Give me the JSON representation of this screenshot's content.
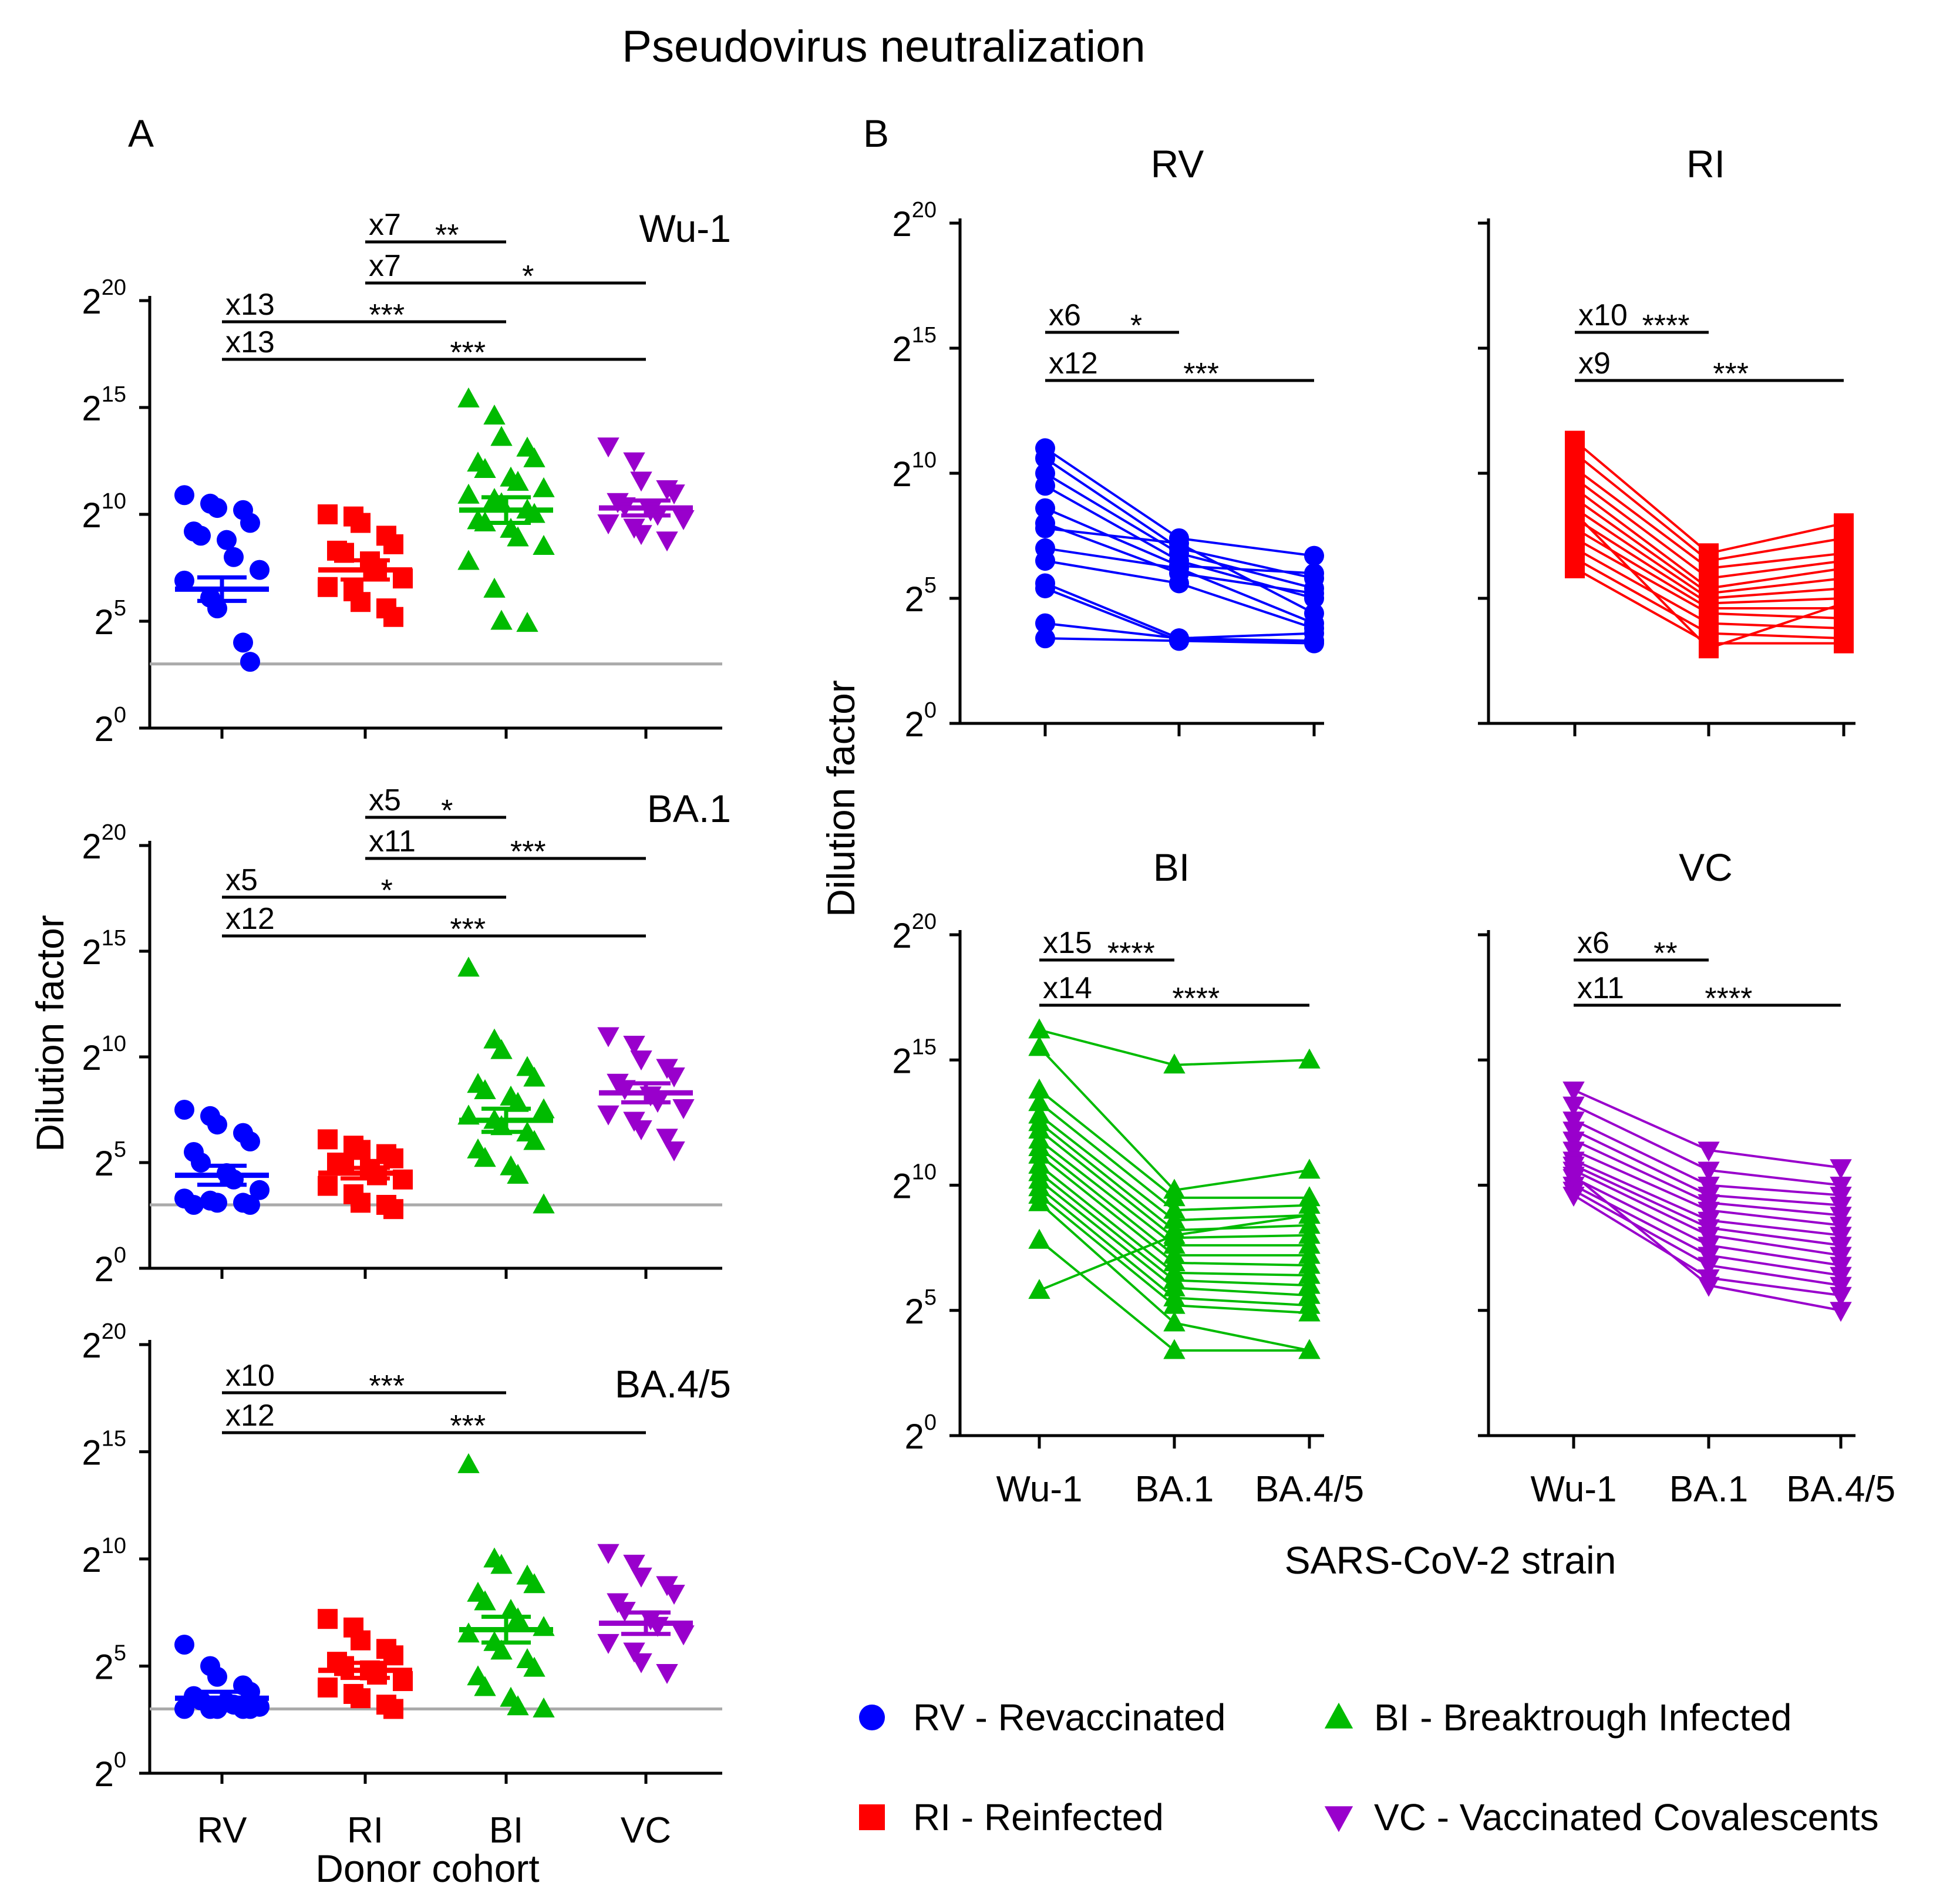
{
  "title": "Pseudovirus neutralization",
  "colors": {
    "RV": "#0000ff",
    "RI": "#ff0000",
    "BI": "#00bb00",
    "VC": "#9900cc",
    "threshold": "#aaaaaa",
    "axis": "#000000"
  },
  "panel_labels": {
    "A": "A",
    "B": "B"
  },
  "axis_labels": {
    "y": "Dilution factor",
    "x_a": "Donor cohort",
    "x_b": "SARS-CoV-2 strain"
  },
  "legend": [
    {
      "key": "RV",
      "label": "RV - Revaccinated",
      "marker": "circle"
    },
    {
      "key": "BI",
      "label": "BI - Breaktrough Infected",
      "marker": "triangle-up"
    },
    {
      "key": "RI",
      "label": "RI - Reinfected",
      "marker": "square"
    },
    {
      "key": "VC",
      "label": "VC - Vaccinated Covalescents",
      "marker": "triangle-down"
    }
  ],
  "chart_data": [
    {
      "id": "A-Wu1",
      "type": "scatter",
      "title": "Wu-1",
      "categories": [
        "RV",
        "RI",
        "BI",
        "VC"
      ],
      "ylim": [
        0,
        20
      ],
      "yticks": [
        0,
        5,
        10,
        15,
        20
      ],
      "y_scale": "log2",
      "ylabel": "Dilution factor",
      "threshold": 3,
      "series": [
        {
          "name": "RV",
          "mean": 6.5,
          "sem": 0.55,
          "values": [
            10.9,
            10.5,
            10.3,
            10.2,
            9.6,
            9.2,
            9.0,
            8.8,
            8.0,
            7.4,
            6.9,
            6.1,
            5.6,
            4.0,
            3.1
          ]
        },
        {
          "name": "RI",
          "mean": 7.4,
          "sem": 0.45,
          "values": [
            10.0,
            9.9,
            9.6,
            9.0,
            8.6,
            8.3,
            8.2,
            7.8,
            7.4,
            7.0,
            6.6,
            6.4,
            5.9,
            5.6,
            5.2
          ]
        },
        {
          "name": "BI",
          "mean": 10.2,
          "sem": 0.6,
          "values": [
            15.4,
            14.6,
            13.6,
            13.1,
            12.6,
            12.4,
            12.1,
            11.7,
            11.5,
            11.2,
            10.9,
            10.7,
            10.5,
            10.2,
            10.0,
            9.7,
            9.6,
            9.3,
            8.9,
            8.5,
            7.8,
            6.5,
            5.0,
            4.9
          ]
        },
        {
          "name": "VC",
          "mean": 10.3,
          "sem": 0.35,
          "values": [
            13.2,
            12.5,
            11.6,
            11.2,
            11.0,
            10.6,
            10.4,
            10.2,
            10.0,
            9.8,
            9.6,
            9.4,
            9.1,
            8.8
          ]
        }
      ],
      "comparisons": [
        {
          "from": "RI",
          "to": "BI",
          "fold": "x7",
          "sig": "**"
        },
        {
          "from": "RI",
          "to": "VC",
          "fold": "x7",
          "sig": "*"
        },
        {
          "from": "RV",
          "to": "BI",
          "fold": "x13",
          "sig": "***"
        },
        {
          "from": "RV",
          "to": "VC",
          "fold": "x13",
          "sig": "***"
        }
      ]
    },
    {
      "id": "A-BA1",
      "type": "scatter",
      "title": "BA.1",
      "categories": [
        "RV",
        "RI",
        "BI",
        "VC"
      ],
      "ylim": [
        0,
        20
      ],
      "yticks": [
        0,
        5,
        10,
        15,
        20
      ],
      "y_scale": "log2",
      "ylabel": "Dilution factor",
      "threshold": 3,
      "series": [
        {
          "name": "RV",
          "mean": 4.4,
          "sem": 0.45,
          "values": [
            7.5,
            7.2,
            6.8,
            6.4,
            6.0,
            5.5,
            5.0,
            4.5,
            4.2,
            3.7,
            3.3,
            3.2,
            3.1,
            3.1,
            3.0,
            3.0
          ]
        },
        {
          "name": "RI",
          "mean": 4.5,
          "sem": 0.25,
          "values": [
            6.1,
            5.8,
            5.6,
            5.4,
            5.2,
            5.0,
            4.9,
            4.7,
            4.4,
            4.2,
            3.9,
            3.5,
            3.1,
            3.0,
            2.8
          ]
        },
        {
          "name": "BI",
          "mean": 7.0,
          "sem": 0.55,
          "values": [
            14.2,
            10.8,
            10.3,
            9.5,
            9.0,
            8.7,
            8.4,
            8.1,
            7.8,
            7.5,
            7.2,
            7.0,
            6.7,
            6.4,
            6.0,
            5.6,
            5.2,
            4.8,
            4.4,
            3.0
          ]
        },
        {
          "name": "VC",
          "mean": 8.3,
          "sem": 0.45,
          "values": [
            11.0,
            10.6,
            9.9,
            9.5,
            9.1,
            8.8,
            8.5,
            8.2,
            7.9,
            7.6,
            7.3,
            7.0,
            6.6,
            6.2,
            5.6
          ]
        }
      ],
      "comparisons": [
        {
          "from": "RI",
          "to": "BI",
          "fold": "x5",
          "sig": "*"
        },
        {
          "from": "RI",
          "to": "VC",
          "fold": "x11",
          "sig": "***"
        },
        {
          "from": "RV",
          "to": "BI",
          "fold": "x5",
          "sig": "*"
        },
        {
          "from": "RV",
          "to": "VC",
          "fold": "x12",
          "sig": "***"
        }
      ]
    },
    {
      "id": "A-BA45",
      "type": "scatter",
      "title": "BA.4/5",
      "categories": [
        "RV",
        "RI",
        "BI",
        "VC"
      ],
      "ylim": [
        0,
        20
      ],
      "yticks": [
        0,
        5,
        10,
        15,
        20
      ],
      "y_scale": "log2",
      "ylabel": "Dilution factor",
      "threshold": 3,
      "series": [
        {
          "name": "RV",
          "mean": 3.5,
          "sem": 0.3,
          "values": [
            6.0,
            5.0,
            4.5,
            4.1,
            3.8,
            3.6,
            3.4,
            3.3,
            3.2,
            3.1,
            3.0,
            3.0,
            3.0,
            3.0,
            3.0
          ]
        },
        {
          "name": "RI",
          "mean": 4.8,
          "sem": 0.35,
          "values": [
            7.2,
            6.8,
            6.2,
            5.8,
            5.5,
            5.2,
            5.0,
            4.8,
            4.6,
            4.3,
            4.0,
            3.7,
            3.5,
            3.2,
            3.0
          ]
        },
        {
          "name": "BI",
          "mean": 6.7,
          "sem": 0.6,
          "values": [
            14.4,
            10.0,
            9.7,
            9.2,
            8.8,
            8.4,
            8.0,
            7.6,
            7.2,
            6.8,
            6.5,
            6.1,
            5.7,
            5.3,
            4.9,
            4.5,
            4.0,
            3.5,
            3.1,
            3.0
          ]
        },
        {
          "name": "VC",
          "mean": 7.0,
          "sem": 0.5,
          "values": [
            10.3,
            9.8,
            9.2,
            8.8,
            8.4,
            8.0,
            7.6,
            7.2,
            6.9,
            6.5,
            6.1,
            5.7,
            5.2,
            4.7
          ]
        }
      ],
      "comparisons": [
        {
          "from": "RV",
          "to": "BI",
          "fold": "x10",
          "sig": "***"
        },
        {
          "from": "RV",
          "to": "VC",
          "fold": "x12",
          "sig": "***"
        }
      ]
    },
    {
      "id": "B-RV",
      "type": "line",
      "title": "RV",
      "cohort": "RV",
      "x": [
        "Wu-1",
        "BA.1",
        "BA.4/5"
      ],
      "ylim": [
        0,
        20
      ],
      "yticks": [
        0,
        5,
        10,
        15,
        20
      ],
      "y_scale": "log2",
      "show_ytick_labels": true,
      "ylabel": "Dilution factor",
      "series": [
        {
          "values": [
            11.0,
            7.4,
            6.7
          ]
        },
        {
          "values": [
            10.6,
            7.0,
            5.8
          ]
        },
        {
          "values": [
            10.0,
            6.8,
            5.4
          ]
        },
        {
          "values": [
            9.5,
            6.5,
            5.0
          ]
        },
        {
          "values": [
            8.6,
            6.3,
            6.0
          ]
        },
        {
          "values": [
            8.0,
            6.0,
            5.2
          ]
        },
        {
          "values": [
            7.8,
            7.2,
            4.4
          ]
        },
        {
          "values": [
            7.0,
            6.2,
            4.0
          ]
        },
        {
          "values": [
            6.5,
            5.6,
            3.8
          ]
        },
        {
          "values": [
            5.6,
            3.4,
            3.3
          ]
        },
        {
          "values": [
            5.4,
            3.3,
            3.2
          ]
        },
        {
          "values": [
            4.0,
            3.4,
            3.6
          ]
        },
        {
          "values": [
            3.4,
            3.3,
            3.3
          ]
        }
      ],
      "comparisons": [
        {
          "from": "Wu-1",
          "to": "BA.1",
          "fold": "x6",
          "sig": "*"
        },
        {
          "from": "Wu-1",
          "to": "BA.4/5",
          "fold": "x12",
          "sig": "***"
        }
      ]
    },
    {
      "id": "B-RI",
      "type": "line",
      "title": "RI",
      "cohort": "RI",
      "x": [
        "Wu-1",
        "BA.1",
        "BA.4/5"
      ],
      "ylim": [
        0,
        20
      ],
      "yticks": [
        0,
        5,
        10,
        15,
        20
      ],
      "y_scale": "log2",
      "show_ytick_labels": false,
      "series": [
        {
          "values": [
            11.3,
            6.8,
            8.0
          ]
        },
        {
          "values": [
            10.8,
            6.5,
            7.4
          ]
        },
        {
          "values": [
            10.2,
            6.2,
            6.8
          ]
        },
        {
          "values": [
            9.8,
            5.8,
            6.5
          ]
        },
        {
          "values": [
            9.4,
            5.4,
            6.2
          ]
        },
        {
          "values": [
            9.0,
            5.2,
            5.8
          ]
        },
        {
          "values": [
            8.6,
            5.0,
            5.4
          ]
        },
        {
          "values": [
            8.2,
            4.8,
            5.0
          ]
        },
        {
          "values": [
            7.8,
            4.6,
            4.6
          ]
        },
        {
          "values": [
            7.4,
            4.4,
            4.2
          ]
        },
        {
          "values": [
            7.0,
            4.0,
            3.8
          ]
        },
        {
          "values": [
            6.6,
            3.6,
            3.4
          ]
        },
        {
          "values": [
            6.2,
            3.2,
            3.2
          ]
        },
        {
          "values": [
            8.4,
            3.0,
            4.8
          ]
        }
      ],
      "comparisons": [
        {
          "from": "Wu-1",
          "to": "BA.1",
          "fold": "x10",
          "sig": "****"
        },
        {
          "from": "Wu-1",
          "to": "BA.4/5",
          "fold": "x9",
          "sig": "***"
        }
      ]
    },
    {
      "id": "B-BI",
      "type": "line",
      "title": "BI",
      "cohort": "BI",
      "x": [
        "Wu-1",
        "BA.1",
        "BA.4/5"
      ],
      "ylim": [
        0,
        20
      ],
      "yticks": [
        0,
        5,
        10,
        15,
        20
      ],
      "y_scale": "log2",
      "show_ytick_labels": true,
      "ylabel": "Dilution factor",
      "series": [
        {
          "values": [
            16.2,
            14.8,
            15.0
          ]
        },
        {
          "values": [
            15.5,
            9.8,
            10.6
          ]
        },
        {
          "values": [
            13.8,
            9.5,
            9.5
          ]
        },
        {
          "values": [
            13.3,
            9.0,
            9.2
          ]
        },
        {
          "values": [
            12.8,
            8.6,
            8.8
          ]
        },
        {
          "values": [
            12.5,
            8.2,
            8.4
          ]
        },
        {
          "values": [
            12.2,
            7.9,
            8.0
          ]
        },
        {
          "values": [
            11.8,
            7.6,
            7.6
          ]
        },
        {
          "values": [
            11.5,
            7.2,
            7.2
          ]
        },
        {
          "values": [
            11.2,
            6.9,
            6.8
          ]
        },
        {
          "values": [
            10.8,
            6.5,
            6.4
          ]
        },
        {
          "values": [
            10.5,
            6.2,
            6.0
          ]
        },
        {
          "values": [
            10.2,
            5.9,
            5.6
          ]
        },
        {
          "values": [
            9.9,
            5.5,
            5.2
          ]
        },
        {
          "values": [
            9.6,
            5.2,
            4.9
          ]
        },
        {
          "values": [
            9.3,
            4.5,
            3.4
          ]
        },
        {
          "values": [
            7.8,
            3.4,
            3.4
          ]
        },
        {
          "values": [
            5.8,
            8.0,
            8.8
          ]
        }
      ],
      "comparisons": [
        {
          "from": "Wu-1",
          "to": "BA.1",
          "fold": "x15",
          "sig": "****"
        },
        {
          "from": "Wu-1",
          "to": "BA.4/5",
          "fold": "x14",
          "sig": "****"
        }
      ]
    },
    {
      "id": "B-VC",
      "type": "line",
      "title": "VC",
      "cohort": "VC",
      "x": [
        "Wu-1",
        "BA.1",
        "BA.4/5"
      ],
      "ylim": [
        0,
        20
      ],
      "yticks": [
        0,
        5,
        10,
        15,
        20
      ],
      "y_scale": "log2",
      "show_ytick_labels": false,
      "series": [
        {
          "values": [
            13.8,
            11.4,
            10.7
          ]
        },
        {
          "values": [
            13.2,
            10.6,
            10.0
          ]
        },
        {
          "values": [
            12.6,
            10.0,
            9.6
          ]
        },
        {
          "values": [
            12.2,
            9.6,
            9.2
          ]
        },
        {
          "values": [
            11.8,
            9.3,
            8.8
          ]
        },
        {
          "values": [
            11.4,
            9.0,
            8.4
          ]
        },
        {
          "values": [
            11.0,
            8.6,
            8.0
          ]
        },
        {
          "values": [
            10.8,
            8.3,
            7.6
          ]
        },
        {
          "values": [
            10.6,
            8.0,
            7.2
          ]
        },
        {
          "values": [
            10.3,
            7.6,
            6.8
          ]
        },
        {
          "values": [
            10.0,
            7.2,
            6.4
          ]
        },
        {
          "values": [
            9.8,
            6.8,
            6.0
          ]
        },
        {
          "values": [
            9.6,
            6.3,
            5.6
          ]
        },
        {
          "values": [
            10.4,
            6.0,
            5.0
          ]
        }
      ],
      "comparisons": [
        {
          "from": "Wu-1",
          "to": "BA.1",
          "fold": "x6",
          "sig": "**"
        },
        {
          "from": "Wu-1",
          "to": "BA.4/5",
          "fold": "x11",
          "sig": "****"
        }
      ]
    }
  ]
}
